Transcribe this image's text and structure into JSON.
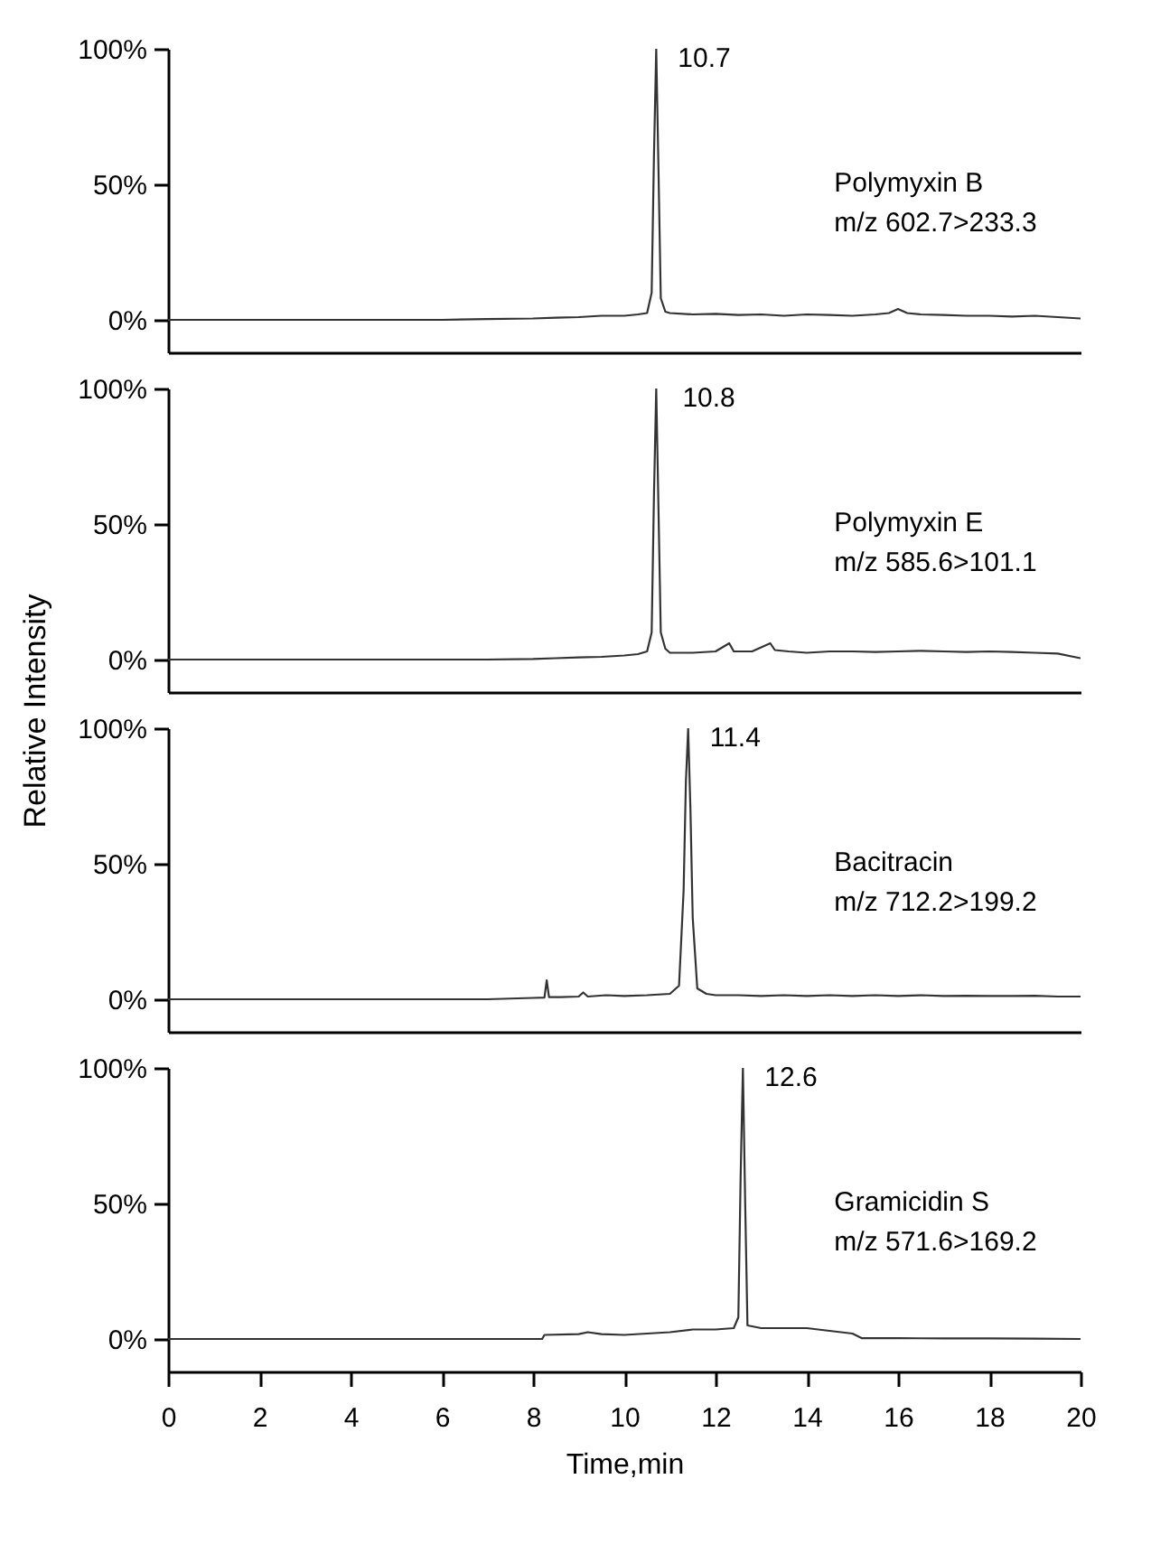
{
  "chart_data": [
    {
      "type": "line",
      "xlim": [
        0,
        20
      ],
      "ylim": [
        -12,
        100
      ],
      "yticks": [
        {
          "value": 0,
          "label": "0%"
        },
        {
          "value": 50,
          "label": "50%"
        },
        {
          "value": 100,
          "label": "100%"
        }
      ],
      "tick_labels": "y",
      "grid": false,
      "annotations": [
        {
          "text": "10.7",
          "x": 10.7,
          "y": 100
        },
        "Polymyxin B\nm/z 602.7>233.3"
      ],
      "series": [
        {
          "color": "#333333",
          "x": [
            0,
            2,
            4,
            6,
            7,
            8,
            8.5,
            9,
            9.5,
            10,
            10.3,
            10.5,
            10.6,
            10.65,
            10.7,
            10.75,
            10.8,
            10.9,
            11,
            11.5,
            12,
            12.5,
            13,
            13.5,
            14,
            14.5,
            15,
            15.5,
            15.8,
            16,
            16.2,
            16.5,
            17,
            17.5,
            18,
            18.5,
            19,
            19.5,
            20
          ],
          "values": [
            0,
            0,
            0,
            0,
            0.3,
            0.5,
            0.8,
            1,
            1.5,
            1.5,
            2,
            2.5,
            10,
            60,
            100,
            55,
            8,
            3,
            2.5,
            2,
            2.2,
            1.8,
            2,
            1.5,
            2,
            1.8,
            1.5,
            2,
            2.5,
            4,
            2.5,
            2,
            1.8,
            1.5,
            1.5,
            1.2,
            1.5,
            1,
            0.5
          ]
        }
      ]
    },
    {
      "type": "line",
      "xlim": [
        0,
        20
      ],
      "ylim": [
        -12,
        100
      ],
      "yticks": [
        {
          "value": 0,
          "label": "0%"
        },
        {
          "value": 50,
          "label": "50%"
        },
        {
          "value": 100,
          "label": "100%"
        }
      ],
      "tick_labels": "y",
      "grid": false,
      "ylabel": "Relative Intensity",
      "annotations": [
        {
          "text": "10.8",
          "x": 10.8,
          "y": 100
        },
        "Polymyxin E\nm/z 585.6>101.1"
      ],
      "series": [
        {
          "color": "#333333",
          "x": [
            0,
            2,
            4,
            6,
            7,
            8,
            8.5,
            9,
            9.5,
            10,
            10.3,
            10.5,
            10.6,
            10.65,
            10.7,
            10.75,
            10.8,
            10.9,
            11,
            11.5,
            12,
            12.3,
            12.4,
            12.8,
            13.2,
            13.3,
            13.6,
            14,
            14.5,
            15,
            15.5,
            16,
            16.5,
            17,
            17.5,
            18,
            18.5,
            19,
            19.5,
            20
          ],
          "values": [
            0,
            0,
            0,
            0,
            0,
            0.2,
            0.5,
            0.8,
            1,
            1.5,
            2,
            3,
            10,
            60,
            100,
            55,
            10,
            4,
            2.5,
            2.5,
            3,
            6,
            3,
            3,
            6,
            3.5,
            3,
            2.5,
            3,
            3,
            2.8,
            3,
            3.2,
            3,
            2.8,
            3,
            2.8,
            2.5,
            2.2,
            0.5
          ]
        }
      ]
    },
    {
      "type": "line",
      "xlim": [
        0,
        20
      ],
      "ylim": [
        -12,
        100
      ],
      "yticks": [
        {
          "value": 0,
          "label": "0%"
        },
        {
          "value": 50,
          "label": "50%"
        },
        {
          "value": 100,
          "label": "100%"
        }
      ],
      "tick_labels": "y",
      "grid": false,
      "annotations": [
        {
          "text": "11.4",
          "x": 11.4,
          "y": 100
        },
        "Bacitracin\nm/z 712.2>199.2"
      ],
      "series": [
        {
          "color": "#333333",
          "x": [
            0,
            2,
            4,
            6,
            7,
            8,
            8.25,
            8.3,
            8.35,
            8.6,
            9,
            9.1,
            9.2,
            9.6,
            10,
            10.5,
            11,
            11.2,
            11.3,
            11.35,
            11.4,
            11.45,
            11.5,
            11.6,
            11.8,
            12,
            12.5,
            13,
            13.5,
            14,
            14.5,
            15,
            15.5,
            16,
            16.5,
            17,
            17.5,
            18,
            18.5,
            19,
            19.5,
            20
          ],
          "values": [
            0,
            0,
            0,
            0,
            0,
            0.5,
            0.6,
            7,
            0.8,
            0.8,
            1,
            2.5,
            1,
            1.5,
            1.2,
            1.5,
            2,
            5,
            40,
            80,
            100,
            70,
            30,
            4,
            2,
            1.5,
            1.5,
            1.2,
            1.5,
            1.2,
            1.5,
            1.2,
            1.5,
            1.2,
            1.5,
            1.2,
            1.3,
            1.2,
            1.2,
            1.3,
            1,
            1
          ]
        }
      ]
    },
    {
      "type": "line",
      "xlim": [
        0,
        20
      ],
      "ylim": [
        -12,
        100
      ],
      "xticks": [
        0,
        2,
        4,
        6,
        8,
        10,
        12,
        14,
        16,
        18,
        20
      ],
      "yticks": [
        {
          "value": 0,
          "label": "0%"
        },
        {
          "value": 50,
          "label": "50%"
        },
        {
          "value": 100,
          "label": "100%"
        }
      ],
      "grid": false,
      "xlabel": "Time,min",
      "annotations": [
        {
          "text": "12.6",
          "x": 12.6,
          "y": 100
        },
        "Gramicidin S\nm/z 571.6>169.2"
      ],
      "series": [
        {
          "color": "#333333",
          "x": [
            0,
            2,
            4,
            6,
            8,
            8.2,
            8.25,
            9,
            9.2,
            9.5,
            10,
            10.5,
            11,
            11.5,
            12,
            12.4,
            12.5,
            12.55,
            12.6,
            12.65,
            12.7,
            13,
            13.5,
            14,
            14.5,
            15,
            15.2,
            16,
            17,
            18,
            19,
            20
          ],
          "values": [
            0,
            0,
            0,
            0,
            0,
            0,
            1.5,
            1.8,
            2.5,
            1.8,
            1.5,
            2,
            2.5,
            3.5,
            3.5,
            4,
            8,
            60,
            100,
            50,
            5,
            4,
            4,
            4,
            3,
            2,
            0.3,
            0.3,
            0.2,
            0.2,
            0.1,
            0
          ]
        }
      ]
    }
  ]
}
